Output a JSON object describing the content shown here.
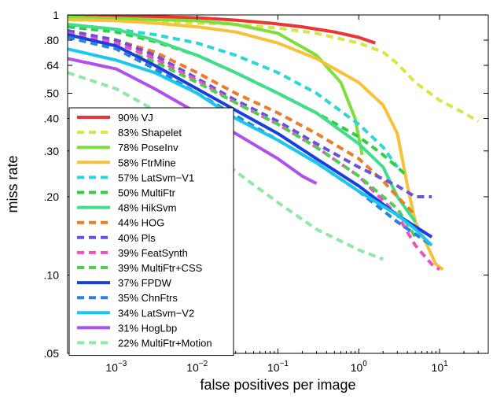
{
  "chart_data": {
    "type": "line",
    "title": "",
    "xlabel": "false positives per image",
    "ylabel": "miss rate",
    "xscale": "log",
    "yscale": "log",
    "xlim": [
      0.00025,
      40
    ],
    "ylim": [
      0.05,
      1
    ],
    "x_ticks": [
      {
        "base": "10",
        "exp": "−3",
        "value": 0.001
      },
      {
        "base": "10",
        "exp": "−2",
        "value": 0.01
      },
      {
        "base": "10",
        "exp": "−1",
        "value": 0.1
      },
      {
        "base": "10",
        "exp": "0",
        "value": 1
      },
      {
        "base": "10",
        "exp": "1",
        "value": 10
      }
    ],
    "y_ticks": [
      {
        "label": "1",
        "value": 1
      },
      {
        "label": ".80",
        "value": 0.8
      },
      {
        "label": ".64",
        "value": 0.64
      },
      {
        "label": ".50",
        "value": 0.5
      },
      {
        "label": ".40",
        "value": 0.4
      },
      {
        "label": ".30",
        "value": 0.3
      },
      {
        "label": ".20",
        "value": 0.2
      },
      {
        "label": ".10",
        "value": 0.1
      },
      {
        "label": ".05",
        "value": 0.05
      }
    ],
    "grid": false,
    "legend_position": "bottom-left",
    "series": [
      {
        "name": "90% VJ",
        "color": "#ee3333",
        "dash": false,
        "x": [
          0.00025,
          0.001,
          0.003,
          0.01,
          0.03,
          0.08,
          0.2,
          0.5,
          1.0,
          1.6
        ],
        "y": [
          0.99,
          0.99,
          0.985,
          0.975,
          0.955,
          0.93,
          0.9,
          0.86,
          0.82,
          0.78
        ]
      },
      {
        "name": "83% Shapelet",
        "color": "#d7e44a",
        "dash": true,
        "x": [
          0.00025,
          0.001,
          0.003,
          0.01,
          0.03,
          0.1,
          0.3,
          1.0,
          2.0,
          3.0,
          5.0,
          10,
          20,
          30
        ],
        "y": [
          0.98,
          0.97,
          0.95,
          0.93,
          0.92,
          0.89,
          0.85,
          0.78,
          0.72,
          0.65,
          0.55,
          0.47,
          0.42,
          0.39
        ]
      },
      {
        "name": "78% PoseInv",
        "color": "#7fdf3a",
        "dash": false,
        "x": [
          0.00025,
          0.001,
          0.003,
          0.01,
          0.03,
          0.1,
          0.3,
          0.6,
          0.9,
          1.1
        ],
        "y": [
          0.98,
          0.97,
          0.96,
          0.95,
          0.92,
          0.85,
          0.7,
          0.55,
          0.4,
          0.29
        ]
      },
      {
        "name": "58% FtrMine",
        "color": "#f7c23a",
        "dash": false,
        "x": [
          0.00025,
          0.001,
          0.003,
          0.01,
          0.03,
          0.1,
          0.3,
          1.0,
          2.0,
          3.0,
          4.0,
          5.0,
          7.0,
          9.0,
          11
        ],
        "y": [
          0.96,
          0.95,
          0.93,
          0.9,
          0.86,
          0.78,
          0.68,
          0.55,
          0.45,
          0.35,
          0.22,
          0.16,
          0.13,
          0.11,
          0.105
        ]
      },
      {
        "name": "57% LatSvm−V1",
        "color": "#2ad6d6",
        "dash": true,
        "x": [
          0.00025,
          0.001,
          0.003,
          0.01,
          0.03,
          0.1,
          0.3,
          1.0,
          2.0,
          3.0
        ],
        "y": [
          0.92,
          0.88,
          0.84,
          0.78,
          0.7,
          0.6,
          0.5,
          0.38,
          0.31,
          0.26
        ]
      },
      {
        "name": "50% MultiFtr",
        "color": "#2fcf3f",
        "dash": true,
        "x": [
          0.00025,
          0.001,
          0.003,
          0.01,
          0.03,
          0.1,
          0.3,
          1.0,
          2.0,
          4.0
        ],
        "y": [
          0.9,
          0.86,
          0.79,
          0.7,
          0.6,
          0.5,
          0.42,
          0.34,
          0.29,
          0.24
        ]
      },
      {
        "name": "48% HikSvm",
        "color": "#3fdf8a",
        "dash": false,
        "x": [
          0.00025,
          0.001,
          0.003,
          0.01,
          0.03,
          0.1,
          0.3,
          1.0,
          2.0,
          3.0,
          5.0
        ],
        "y": [
          0.92,
          0.88,
          0.8,
          0.7,
          0.6,
          0.5,
          0.42,
          0.32,
          0.26,
          0.2,
          0.16
        ]
      },
      {
        "name": "44% HOG",
        "color": "#f07a2a",
        "dash": true,
        "x": [
          0.00025,
          0.001,
          0.003,
          0.01,
          0.03,
          0.1,
          0.3,
          1.0,
          2.0,
          3.0,
          5.0
        ],
        "y": [
          0.87,
          0.8,
          0.72,
          0.6,
          0.5,
          0.42,
          0.35,
          0.28,
          0.23,
          0.2,
          0.17
        ]
      },
      {
        "name": "40% Pls",
        "color": "#6a4fe0",
        "dash": true,
        "x": [
          0.00025,
          0.001,
          0.003,
          0.01,
          0.03,
          0.1,
          0.3,
          1.0,
          3.0,
          5.0,
          8.0
        ],
        "y": [
          0.87,
          0.8,
          0.7,
          0.57,
          0.47,
          0.39,
          0.32,
          0.26,
          0.22,
          0.2,
          0.2
        ]
      },
      {
        "name": "39% FeatSynth",
        "color": "#ef4fbf",
        "dash": true,
        "x": [
          0.00025,
          0.001,
          0.003,
          0.01,
          0.03,
          0.1,
          0.3,
          1.0,
          3.0,
          5.0,
          8.0,
          10
        ],
        "y": [
          0.85,
          0.78,
          0.68,
          0.56,
          0.46,
          0.38,
          0.31,
          0.24,
          0.17,
          0.13,
          0.11,
          0.105
        ]
      },
      {
        "name": "39% MultiFtr+CSS",
        "color": "#4fcf4f",
        "dash": true,
        "x": [
          0.00025,
          0.001,
          0.003,
          0.01,
          0.03,
          0.1,
          0.3,
          1.0,
          3.0,
          5.0
        ],
        "y": [
          0.82,
          0.75,
          0.66,
          0.55,
          0.46,
          0.38,
          0.31,
          0.24,
          0.18,
          0.14
        ]
      },
      {
        "name": "37% FPDW",
        "color": "#1a3fe0",
        "dash": false,
        "x": [
          0.00025,
          0.001,
          0.003,
          0.01,
          0.03,
          0.1,
          0.3,
          1.0,
          3.0,
          8.0
        ],
        "y": [
          0.84,
          0.76,
          0.64,
          0.52,
          0.43,
          0.35,
          0.28,
          0.22,
          0.17,
          0.14
        ]
      },
      {
        "name": "35% ChnFtrs",
        "color": "#2a7fe0",
        "dash": true,
        "x": [
          0.00025,
          0.001,
          0.003,
          0.01,
          0.03,
          0.1,
          0.3,
          1.0,
          3.0,
          8.0
        ],
        "y": [
          0.82,
          0.74,
          0.62,
          0.5,
          0.41,
          0.33,
          0.27,
          0.21,
          0.16,
          0.13
        ]
      },
      {
        "name": "34% LatSvm−V2",
        "color": "#1ac8ef",
        "dash": false,
        "x": [
          0.00025,
          0.001,
          0.003,
          0.01,
          0.03,
          0.1,
          0.3,
          1.0,
          3.0,
          5.0,
          8.0
        ],
        "y": [
          0.74,
          0.67,
          0.6,
          0.5,
          0.4,
          0.33,
          0.27,
          0.21,
          0.17,
          0.15,
          0.13
        ]
      },
      {
        "name": "31% HogLbp",
        "color": "#b04fef",
        "dash": false,
        "x": [
          0.00025,
          0.001,
          0.003,
          0.01,
          0.03,
          0.1,
          0.2,
          0.3
        ],
        "y": [
          0.68,
          0.62,
          0.52,
          0.42,
          0.35,
          0.28,
          0.24,
          0.225
        ]
      },
      {
        "name": "22% MultiFtr+Motion",
        "color": "#8fe8a8",
        "dash": true,
        "x": [
          0.00025,
          0.001,
          0.003,
          0.01,
          0.03,
          0.1,
          0.3,
          1.0,
          2.0
        ],
        "y": [
          0.6,
          0.52,
          0.43,
          0.33,
          0.25,
          0.19,
          0.15,
          0.125,
          0.115
        ]
      }
    ]
  }
}
